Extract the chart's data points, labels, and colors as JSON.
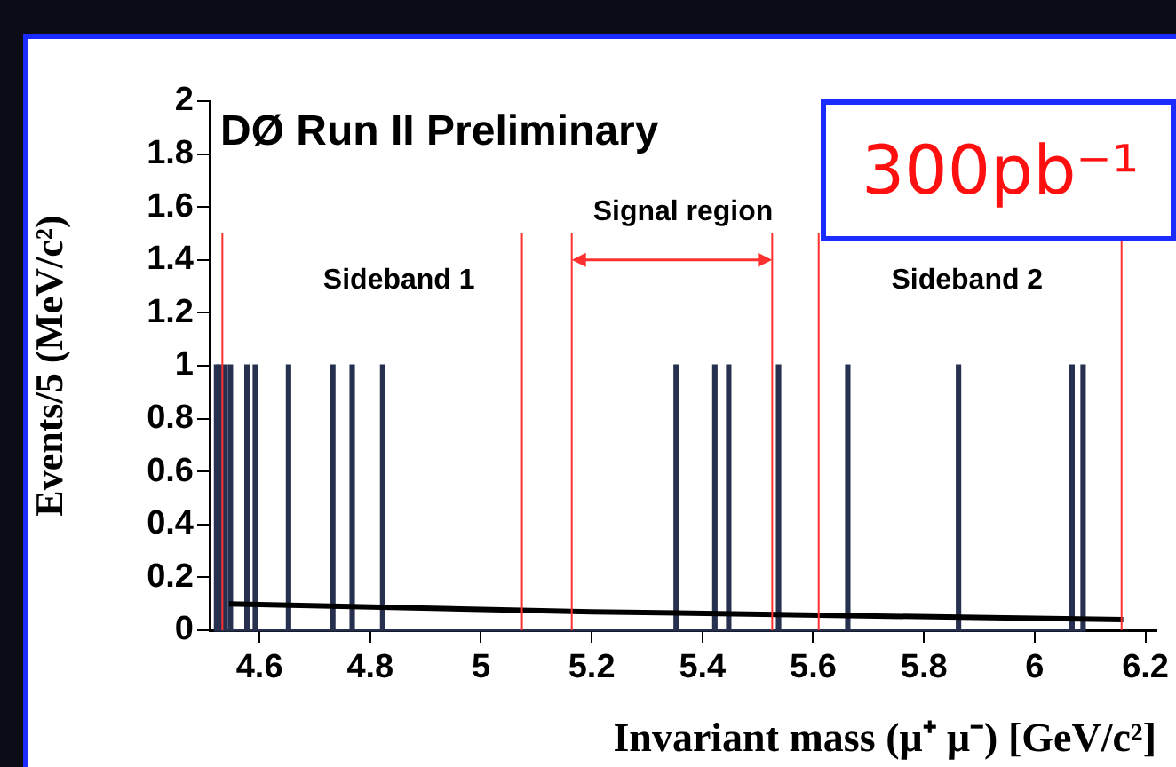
{
  "chart_data": {
    "type": "histogram",
    "title": "DØ Run II Preliminary",
    "xlabel": "Invariant mass (μ⁺ μ⁻) [GeV/c²]",
    "ylabel": "Events/5 (MeV/c²)",
    "bins": [
      4.52,
      4.525,
      4.53,
      4.535,
      4.54,
      4.545,
      4.55,
      4.575,
      4.58,
      4.59,
      4.595,
      4.65,
      4.655,
      4.73,
      4.735,
      4.765,
      4.77,
      4.82,
      4.825,
      5.35,
      5.355,
      5.42,
      5.425,
      5.445,
      5.45,
      5.535,
      5.54,
      5.66,
      5.665,
      5.86,
      5.865,
      6.065,
      6.07,
      6.085,
      6.09
    ],
    "values": [
      1,
      1,
      0,
      1,
      0,
      1,
      0,
      1,
      0,
      1,
      0,
      1,
      0,
      1,
      0,
      1,
      0,
      1,
      0,
      1,
      0,
      1,
      0,
      1,
      0,
      1,
      0,
      1,
      0,
      1,
      0,
      1,
      0,
      1
    ],
    "color": "#27314f",
    "series": [
      {
        "type": "line",
        "x": [
          4.545,
          5.2,
          6.16
        ],
        "values": [
          0.1,
          0.07,
          0.04
        ],
        "color": "#000000"
      }
    ],
    "xlim": [
      4.51,
      6.22
    ],
    "ylim": [
      0,
      2
    ],
    "xticks": [
      4.6,
      4.8,
      5,
      5.2,
      5.4,
      5.6,
      5.8,
      6,
      6.2
    ],
    "yticks": [
      0,
      0.2,
      0.4,
      0.6,
      0.8,
      1,
      1.2,
      1.4,
      1.6,
      1.8,
      2
    ],
    "ref_lines": [
      {
        "axis": "x",
        "value": 4.533,
        "color": "#ff3030"
      },
      {
        "axis": "x",
        "value": 5.074,
        "color": "#ff3030"
      },
      {
        "axis": "x",
        "value": 5.164,
        "color": "#ff3030"
      },
      {
        "axis": "x",
        "value": 5.526,
        "color": "#ff3030"
      },
      {
        "axis": "x",
        "value": 5.61,
        "color": "#ff3030"
      },
      {
        "axis": "x",
        "value": 6.157,
        "color": "#ff3030"
      }
    ],
    "annotations": [
      "Sideband 1",
      "Signal region",
      "Sideband 2",
      "300pb⁻¹"
    ],
    "grid": false,
    "legend": false,
    "marker": "none"
  }
}
